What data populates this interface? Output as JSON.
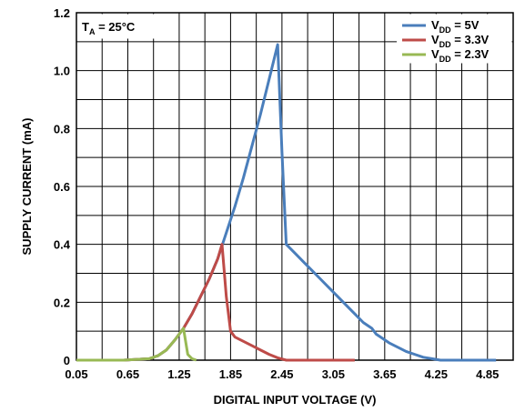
{
  "chart_data": {
    "type": "line",
    "xlabel": "DIGITAL INPUT VOLTAGE (V)",
    "ylabel": "SUPPLY CURRENT (mA)",
    "xlim": [
      0.05,
      5.15
    ],
    "ylim": [
      0,
      1.2
    ],
    "xticks": [
      "0.05",
      "0.65",
      "1.25",
      "1.85",
      "2.45",
      "3.05",
      "3.65",
      "4.25",
      "4.85"
    ],
    "yticks": [
      "0",
      "0.2",
      "0.4",
      "0.6",
      "0.8",
      "1.0",
      "1.2"
    ],
    "grid": true,
    "legend_position": "top-right",
    "annotation": {
      "main": "T",
      "sub": "A",
      "rest": " = 25°C"
    },
    "series": [
      {
        "name": "VDD = 5V",
        "legend": {
          "prefix": "V",
          "sub": "DD",
          "suffix": " = 5V"
        },
        "color": "#4A7EBB",
        "x": [
          0.05,
          0.6,
          0.9,
          1.0,
          1.1,
          1.2,
          1.3,
          1.4,
          1.5,
          1.6,
          1.7,
          1.8,
          1.9,
          2.0,
          2.1,
          2.2,
          2.3,
          2.4,
          2.45,
          2.5,
          2.6,
          2.7,
          2.8,
          2.9,
          3.0,
          3.1,
          3.2,
          3.3,
          3.4,
          3.5,
          3.55,
          3.6,
          3.7,
          3.8,
          3.9,
          4.0,
          4.1,
          4.2,
          4.3,
          4.5,
          4.7,
          4.95
        ],
        "y": [
          0,
          0,
          0.005,
          0.015,
          0.035,
          0.07,
          0.11,
          0.16,
          0.22,
          0.28,
          0.35,
          0.44,
          0.53,
          0.63,
          0.74,
          0.85,
          0.97,
          1.09,
          0.72,
          0.4,
          0.37,
          0.34,
          0.31,
          0.28,
          0.25,
          0.22,
          0.19,
          0.16,
          0.13,
          0.11,
          0.09,
          0.08,
          0.06,
          0.045,
          0.03,
          0.02,
          0.01,
          0.005,
          0,
          0,
          0,
          0
        ]
      },
      {
        "name": "VDD = 3.3V",
        "legend": {
          "prefix": "V",
          "sub": "DD",
          "suffix": " = 3.3V"
        },
        "color": "#BE4B48",
        "x": [
          0.05,
          0.6,
          0.9,
          1.0,
          1.1,
          1.2,
          1.3,
          1.4,
          1.5,
          1.6,
          1.7,
          1.75,
          1.8,
          1.85,
          1.9,
          2.0,
          2.1,
          2.2,
          2.3,
          2.4,
          2.5,
          2.7,
          3.0,
          3.3
        ],
        "y": [
          0,
          0,
          0.005,
          0.015,
          0.035,
          0.07,
          0.11,
          0.16,
          0.22,
          0.28,
          0.35,
          0.4,
          0.22,
          0.1,
          0.08,
          0.065,
          0.05,
          0.035,
          0.02,
          0.008,
          0,
          0,
          0,
          0
        ]
      },
      {
        "name": "VDD = 2.3V",
        "legend": {
          "prefix": "V",
          "sub": "DD",
          "suffix": " = 2.3V"
        },
        "color": "#98B954",
        "x": [
          0.05,
          0.6,
          0.9,
          1.0,
          1.1,
          1.2,
          1.25,
          1.3,
          1.35,
          1.4,
          1.45
        ],
        "y": [
          0,
          0,
          0.005,
          0.015,
          0.035,
          0.07,
          0.09,
          0.11,
          0.02,
          0.005,
          0
        ]
      }
    ]
  }
}
